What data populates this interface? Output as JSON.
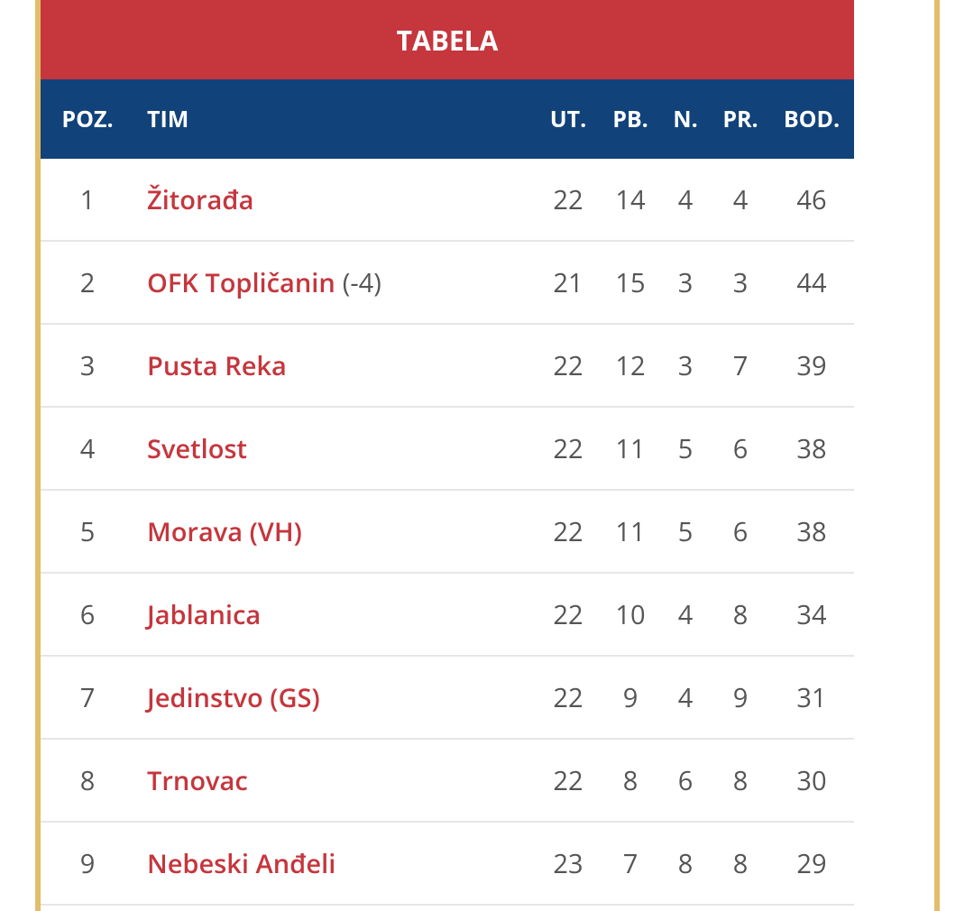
{
  "title": "TABELA",
  "columns": {
    "pos": "POZ.",
    "team": "TIM",
    "played": "UT.",
    "wins": "PB.",
    "draws": "N.",
    "losses": "PR.",
    "points": "BOD."
  },
  "rows": [
    {
      "pos": "1",
      "team": "Žitorađa",
      "note": "",
      "played": "22",
      "wins": "14",
      "draws": "4",
      "losses": "4",
      "points": "46"
    },
    {
      "pos": "2",
      "team": "OFK Topličanin",
      "note": "(-4)",
      "played": "21",
      "wins": "15",
      "draws": "3",
      "losses": "3",
      "points": "44"
    },
    {
      "pos": "3",
      "team": "Pusta Reka",
      "note": "",
      "played": "22",
      "wins": "12",
      "draws": "3",
      "losses": "7",
      "points": "39"
    },
    {
      "pos": "4",
      "team": "Svetlost",
      "note": "",
      "played": "22",
      "wins": "11",
      "draws": "5",
      "losses": "6",
      "points": "38"
    },
    {
      "pos": "5",
      "team": "Morava (VH)",
      "note": "",
      "played": "22",
      "wins": "11",
      "draws": "5",
      "losses": "6",
      "points": "38"
    },
    {
      "pos": "6",
      "team": "Jablanica",
      "note": "",
      "played": "22",
      "wins": "10",
      "draws": "4",
      "losses": "8",
      "points": "34"
    },
    {
      "pos": "7",
      "team": "Jedinstvo (GS)",
      "note": "",
      "played": "22",
      "wins": "9",
      "draws": "4",
      "losses": "9",
      "points": "31"
    },
    {
      "pos": "8",
      "team": "Trnovac",
      "note": "",
      "played": "22",
      "wins": "8",
      "draws": "6",
      "losses": "8",
      "points": "30"
    },
    {
      "pos": "9",
      "team": "Nebeski Anđeli",
      "note": "",
      "played": "23",
      "wins": "7",
      "draws": "8",
      "losses": "8",
      "points": "29"
    }
  ],
  "colors": {
    "title_bg": "#c5363d",
    "header_bg": "#11427a",
    "team_link": "#c5363d",
    "frame": "#e2bd6a"
  }
}
